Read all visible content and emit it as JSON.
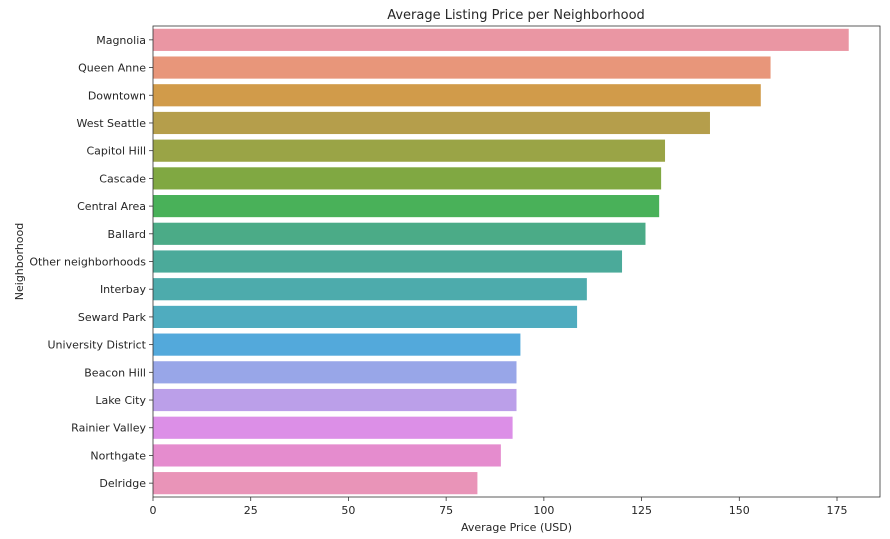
{
  "chart_data": {
    "type": "bar",
    "orientation": "horizontal",
    "title": "Average Listing Price per Neighborhood",
    "xlabel": "Average Price (USD)",
    "ylabel": "Neighborhood",
    "xlim": [
      0,
      186
    ],
    "xticks": [
      0,
      25,
      50,
      75,
      100,
      125,
      150,
      175
    ],
    "grid": false,
    "categories": [
      "Magnolia",
      "Queen Anne",
      "Downtown",
      "West Seattle",
      "Capitol Hill",
      "Cascade",
      "Central Area",
      "Ballard",
      "Other neighborhoods",
      "Interbay",
      "Seward Park",
      "University District",
      "Beacon Hill",
      "Lake City",
      "Rainier Valley",
      "Northgate",
      "Delridge"
    ],
    "values": [
      178,
      158,
      155.5,
      142.5,
      131,
      130,
      129.5,
      126,
      120,
      111,
      108.5,
      94,
      93,
      93,
      92,
      89,
      83
    ],
    "colors": [
      "#ea96a3",
      "#e8967a",
      "#d19b4a",
      "#b59e4b",
      "#9aa446",
      "#80a842",
      "#49b159",
      "#4bab87",
      "#4baa9a",
      "#4dabac",
      "#4facbf",
      "#53a9db",
      "#98a6e8",
      "#bb9fe9",
      "#dc8fe7",
      "#e58cce",
      "#e994b8"
    ]
  }
}
